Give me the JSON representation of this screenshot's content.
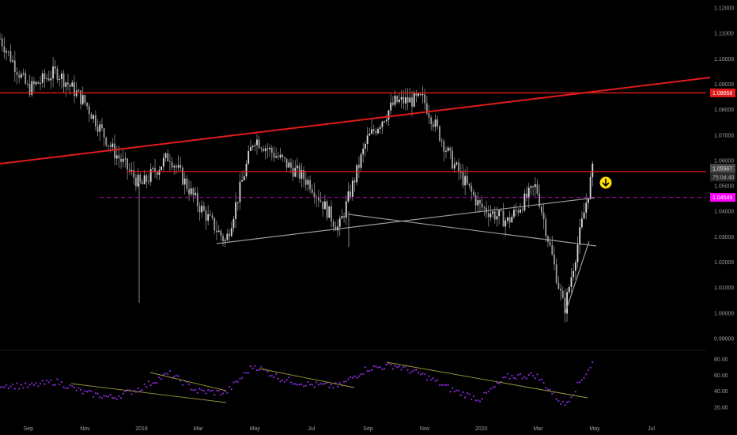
{
  "colors": {
    "background": "#000000",
    "candle": "#c8c8c8",
    "wick": "#8a8a8a",
    "resistance": "#e31b1b",
    "trendline": "#9a9a9a",
    "dashed_level": "#b000b0",
    "magenta_tag": "#ff00ff",
    "rsi_dots": "#8a2be2",
    "rsi_trendline": "#9c9c3a",
    "arrow_fill": "#ffe000",
    "price_tag_gray": "#4a4a4a"
  },
  "price_axis": {
    "ticks": [
      "1.12000",
      "1.11000",
      "1.10000",
      "1.09000",
      "1.08000",
      "1.07000",
      "1.06000",
      "1.05000",
      "1.04000",
      "1.03000",
      "1.02000",
      "1.01000",
      "1.00000",
      "0.99000"
    ],
    "tags": [
      {
        "label": "1.08658",
        "style": "red"
      },
      {
        "label": "1.05567",
        "style": "gray"
      },
      {
        "label": "75:04:40",
        "style": "gray"
      },
      {
        "label": "1.04549",
        "style": "magenta"
      }
    ]
  },
  "rsi_axis": {
    "ticks": [
      "80.00",
      "60.00",
      "40.00",
      "20.00"
    ]
  },
  "time_axis": {
    "labels": [
      "Sep",
      "Nov",
      "2019",
      "Mar",
      "May",
      "Jul",
      "Sep",
      "Nov",
      "2020",
      "Mar",
      "May",
      "Jul"
    ]
  },
  "icons": {
    "down_arrow": "arrow-down-circle-icon"
  },
  "chart_data": {
    "type": "candlestick",
    "title": "",
    "price_range": [
      0.99,
      1.12
    ],
    "rsi_range": [
      10,
      90
    ],
    "price_path": [
      {
        "x": "Aug 2018",
        "y": 1.108
      },
      {
        "x": "Sep 2018",
        "y": 1.088
      },
      {
        "x": "Oct 2018",
        "y": 1.095
      },
      {
        "x": "Nov 2018",
        "y": 1.083
      },
      {
        "x": "Dec 2018",
        "y": 1.064
      },
      {
        "x": "Jan 2019",
        "y": 1.05
      },
      {
        "x": "Feb 2019",
        "y": 1.062
      },
      {
        "x": "Mar 2019",
        "y": 1.043
      },
      {
        "x": "Apr 2019",
        "y": 1.028
      },
      {
        "x": "May 2019",
        "y": 1.069
      },
      {
        "x": "Jun 2019",
        "y": 1.06
      },
      {
        "x": "Jul 2019",
        "y": 1.051
      },
      {
        "x": "Aug 2019",
        "y": 1.033
      },
      {
        "x": "Sep 2019",
        "y": 1.068
      },
      {
        "x": "Oct 2019",
        "y": 1.083
      },
      {
        "x": "Nov 2019",
        "y": 1.084
      },
      {
        "x": "Dec 2019",
        "y": 1.06
      },
      {
        "x": "Jan 2020",
        "y": 1.042
      },
      {
        "x": "Feb 2020",
        "y": 1.036
      },
      {
        "x": "Mar 2020",
        "y": 1.05
      },
      {
        "x": "Apr 2020",
        "y": 1.001
      },
      {
        "x": "May 2020",
        "y": 1.056
      }
    ],
    "levels": [
      {
        "name": "1.08658",
        "value": 1.08658
      },
      {
        "name": "1.05567",
        "value": 1.05567
      },
      {
        "name": "1.04549",
        "value": 1.04549
      }
    ],
    "rsi_path": [
      {
        "x": "Aug 2018",
        "y": 48
      },
      {
        "x": "Sep 2018",
        "y": 46
      },
      {
        "x": "Oct 2018",
        "y": 52
      },
      {
        "x": "Nov 2018",
        "y": 38
      },
      {
        "x": "Dec 2018",
        "y": 32
      },
      {
        "x": "Jan 2019",
        "y": 44
      },
      {
        "x": "Feb 2019",
        "y": 62
      },
      {
        "x": "Mar 2019",
        "y": 40
      },
      {
        "x": "Apr 2019",
        "y": 38
      },
      {
        "x": "May 2019",
        "y": 72
      },
      {
        "x": "Jun 2019",
        "y": 55
      },
      {
        "x": "Jul 2019",
        "y": 48
      },
      {
        "x": "Aug 2019",
        "y": 46
      },
      {
        "x": "Sep 2019",
        "y": 68
      },
      {
        "x": "Oct 2019",
        "y": 72
      },
      {
        "x": "Nov 2019",
        "y": 60
      },
      {
        "x": "Dec 2019",
        "y": 42
      },
      {
        "x": "Jan 2020",
        "y": 30
      },
      {
        "x": "Feb 2020",
        "y": 58
      },
      {
        "x": "Mar 2020",
        "y": 60
      },
      {
        "x": "Apr 2020",
        "y": 22
      },
      {
        "x": "May 2020",
        "y": 75
      }
    ]
  }
}
